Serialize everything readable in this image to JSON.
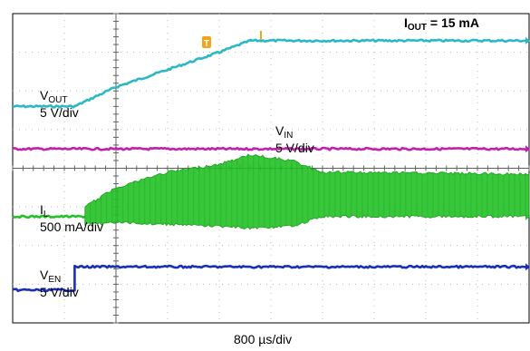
{
  "chart_data": {
    "type": "line",
    "title_main": "I",
    "title_sub": "OUT",
    "title_rest": " = 15 mA",
    "x_axis_label": "800 µs/div",
    "trigger_marker": "T",
    "grid": true,
    "x_divisions": 10,
    "y_divisions": 8,
    "x_range_divisions": [
      -2,
      8
    ],
    "channels": [
      {
        "key": "vout",
        "label_main": "V",
        "label_sub": "OUT",
        "label_scale": "5 V/div",
        "color": "#2ab8c4",
        "points_div": [
          [
            -2.0,
            5.6
          ],
          [
            -0.8,
            5.6
          ],
          [
            0.0,
            6.1
          ],
          [
            2.0,
            7.0
          ],
          [
            2.6,
            7.3
          ],
          [
            8.0,
            7.3
          ]
        ]
      },
      {
        "key": "vin",
        "label_main": "V",
        "label_sub": "IN",
        "label_scale": "5 V/div",
        "color": "#c21fb0",
        "points_div": [
          [
            -2.0,
            4.5
          ],
          [
            8.0,
            4.5
          ]
        ]
      },
      {
        "key": "il",
        "label_main": "I",
        "label_sub": "L",
        "label_scale": "500 mA/div",
        "color": "#22c125",
        "baseline_div": 2.75,
        "envelope_start_div": -0.6,
        "upper_env_div": [
          [
            -0.6,
            3.0
          ],
          [
            0.0,
            3.5
          ],
          [
            1.0,
            3.9
          ],
          [
            2.0,
            4.1
          ],
          [
            2.6,
            4.35
          ],
          [
            3.4,
            4.2
          ],
          [
            4.0,
            3.9
          ],
          [
            8.0,
            3.85
          ]
        ],
        "lower_env_div": [
          [
            -0.6,
            2.55
          ],
          [
            0.0,
            2.6
          ],
          [
            1.0,
            2.55
          ],
          [
            2.0,
            2.5
          ],
          [
            2.6,
            2.45
          ],
          [
            3.4,
            2.5
          ],
          [
            4.0,
            2.75
          ],
          [
            8.0,
            2.75
          ]
        ]
      },
      {
        "key": "ven",
        "label_main": "V",
        "label_sub": "EN",
        "label_scale": "5 V/div",
        "color": "#1a2fb8",
        "points_div": [
          [
            -2.0,
            0.85
          ],
          [
            -0.8,
            0.85
          ],
          [
            -0.8,
            1.45
          ],
          [
            8.0,
            1.45
          ]
        ]
      }
    ]
  }
}
